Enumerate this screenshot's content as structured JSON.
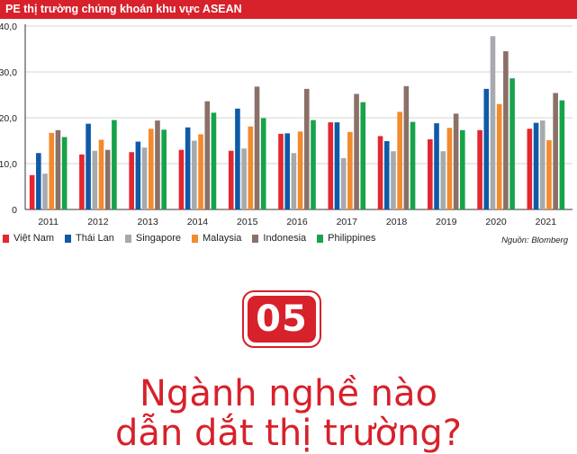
{
  "header": {
    "title": "PE thị trường chứng khoán khu vực ASEAN"
  },
  "source": "Nguồn: Blomberg",
  "badge": "05",
  "headline": {
    "line1": "Ngành nghề nào",
    "line2": "dẫn dắt thị trường?"
  },
  "chart_data": {
    "type": "bar",
    "categories": [
      "2011",
      "2012",
      "2013",
      "2014",
      "2015",
      "2016",
      "2017",
      "2018",
      "2019",
      "2020",
      "2021"
    ],
    "ylim": [
      0,
      40
    ],
    "yticks": [
      "0",
      "10,0",
      "20,0",
      "30,0",
      "40,0"
    ],
    "grid": true,
    "legend_position": "bottom",
    "series": [
      {
        "name": "Việt Nam",
        "color": "#e3262f",
        "values": [
          7.5,
          12.0,
          12.5,
          13.0,
          12.8,
          16.5,
          19.0,
          16.0,
          15.3,
          17.3,
          17.6
        ]
      },
      {
        "name": "Thái Lan",
        "color": "#0f5aa7",
        "values": [
          12.3,
          18.7,
          14.8,
          17.9,
          22.0,
          16.6,
          19.0,
          14.9,
          18.8,
          26.3,
          18.9
        ]
      },
      {
        "name": "Singapore",
        "color": "#a6a9ad",
        "values": [
          7.8,
          12.8,
          13.5,
          15.0,
          13.3,
          12.3,
          11.2,
          12.7,
          12.7,
          37.8,
          19.4
        ]
      },
      {
        "name": "Malaysia",
        "color": "#f28a2e",
        "values": [
          16.7,
          15.2,
          17.6,
          16.4,
          18.1,
          17.0,
          16.9,
          21.3,
          17.8,
          23.0,
          15.1
        ]
      },
      {
        "name": "Indonesia",
        "color": "#8a7067",
        "values": [
          17.3,
          13.0,
          19.4,
          23.6,
          26.8,
          26.3,
          25.2,
          26.9,
          20.9,
          34.5,
          25.4
        ]
      },
      {
        "name": "Philippines",
        "color": "#16a34a",
        "values": [
          15.8,
          19.5,
          17.4,
          21.1,
          19.9,
          19.5,
          23.4,
          19.1,
          17.3,
          28.6,
          23.8
        ]
      }
    ]
  }
}
